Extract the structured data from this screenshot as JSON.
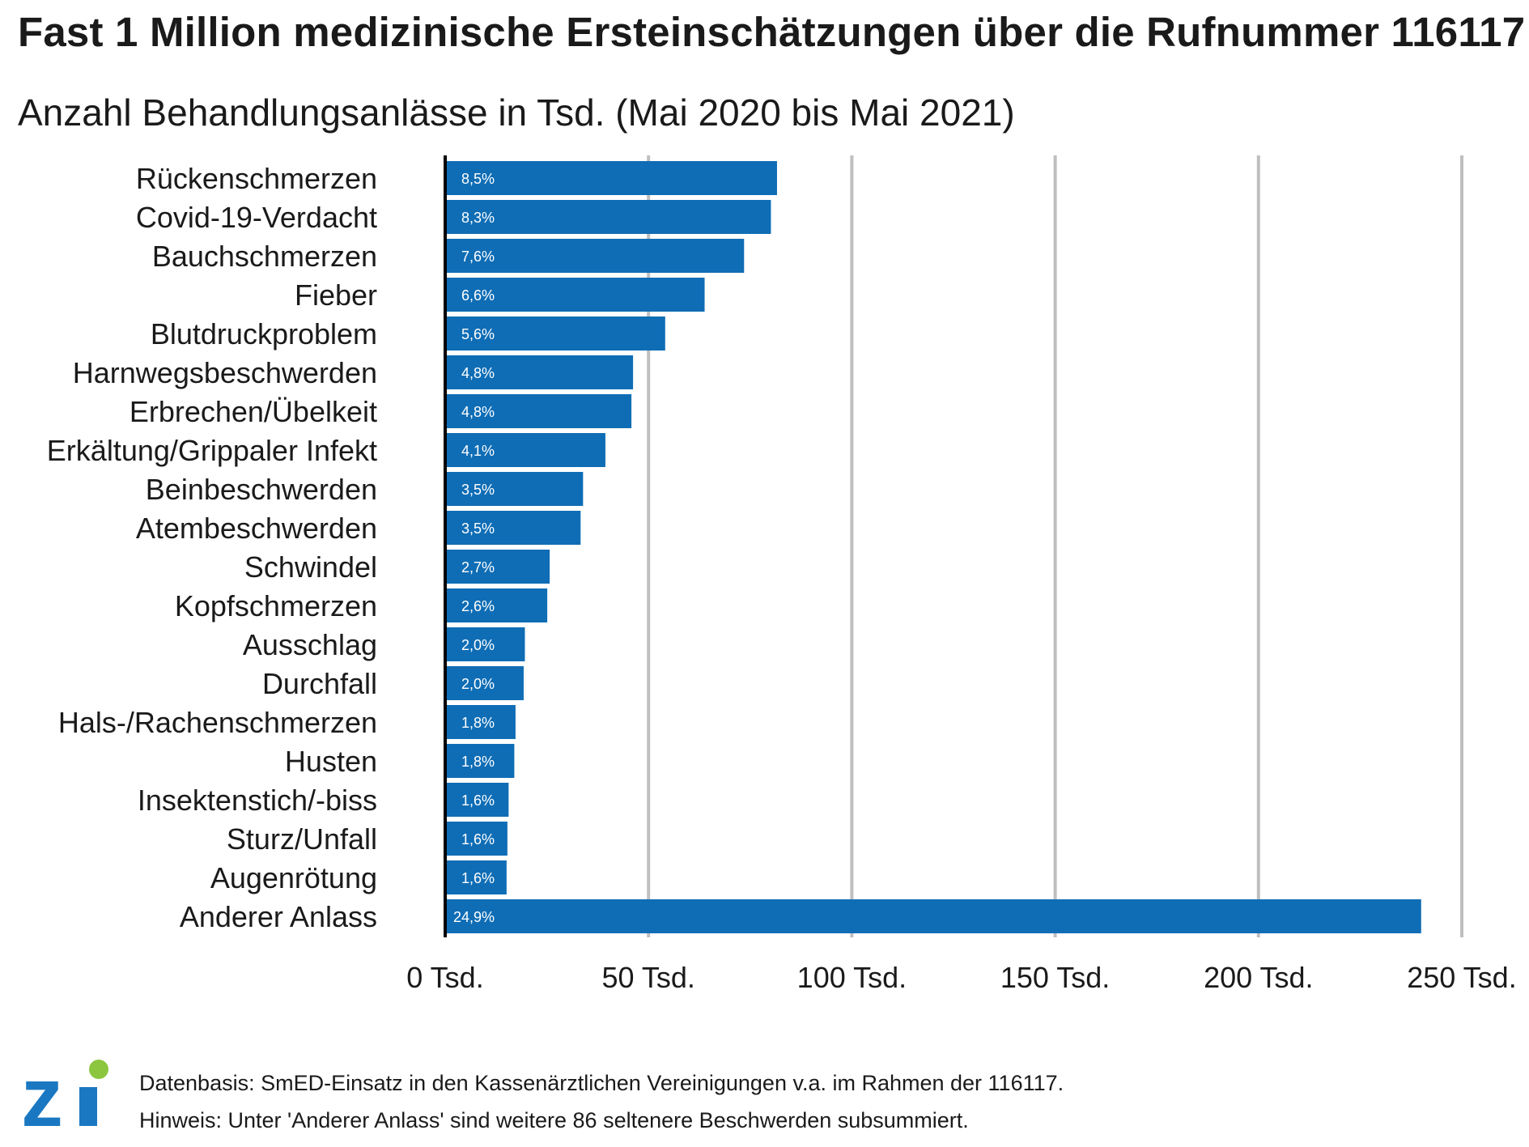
{
  "title": "Fast 1 Million medizinische Ersteinschätzungen über die Rufnummer 116117",
  "subtitle": "Anzahl Behandlungsanlässe in Tsd. (Mai 2020 bis Mai 2021)",
  "colors": {
    "bar": "#0f6db5",
    "grid": "#bfbfbf",
    "axis": "#000000",
    "logo_blue": "#1a78c2",
    "logo_green": "#8cc63f"
  },
  "chart_data": {
    "type": "bar",
    "orientation": "horizontal",
    "categories": [
      "Rückenschmerzen",
      "Covid-19-Verdacht",
      "Bauchschmerzen",
      "Fieber",
      "Blutdruckproblem",
      "Harnwegsbeschwerden",
      "Erbrechen/Übelkeit",
      "Erkältung/Grippaler Infekt",
      "Beinbeschwerden",
      "Atembeschwerden",
      "Schwindel",
      "Kopfschmerzen",
      "Ausschlag",
      "Durchfall",
      "Hals-/Rachenschmerzen",
      "Husten",
      "Insektenstich/-biss",
      "Sturz/Unfall",
      "Augenrötung",
      "Anderer Anlass"
    ],
    "values": [
      81.6,
      80.1,
      73.5,
      63.8,
      54.1,
      46.2,
      45.8,
      39.4,
      33.9,
      33.3,
      25.7,
      25.1,
      19.6,
      19.3,
      17.3,
      17.0,
      15.6,
      15.3,
      15.1,
      240.0
    ],
    "data_labels": [
      "8,5%",
      "8,3%",
      "7,6%",
      "6,6%",
      "5,6%",
      "4,8%",
      "4,8%",
      "4,1%",
      "3,5%",
      "3,5%",
      "2,7%",
      "2,6%",
      "2,0%",
      "2,0%",
      "1,8%",
      "1,8%",
      "1,6%",
      "1,6%",
      "1,6%",
      "24,9%"
    ],
    "xticks": [
      0,
      50,
      100,
      150,
      200,
      250
    ],
    "xtick_labels": [
      "0 Tsd.",
      "50 Tsd.",
      "100 Tsd.",
      "150 Tsd.",
      "200 Tsd.",
      "250 Tsd."
    ],
    "xlim": [
      0,
      250
    ],
    "grid": true,
    "legend": "none",
    "xlabel": "",
    "ylabel": ""
  },
  "footer": {
    "line1": "Datenbasis: SmED-Einsatz in den Kassenärztlichen Vereinigungen v.a. im Rahmen der 116117.",
    "line2": "Hinweis: Unter 'Anderer Anlass' sind weitere 86 seltenere Beschwerden subsummiert."
  },
  "logo": {
    "text": "zi"
  }
}
